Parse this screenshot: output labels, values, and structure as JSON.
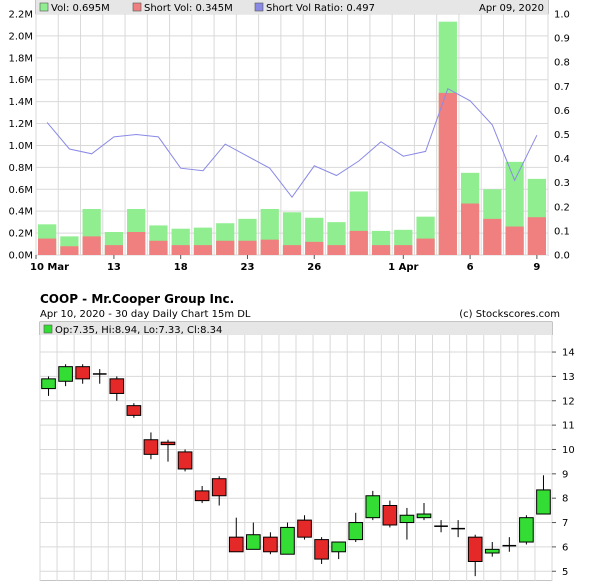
{
  "colors": {
    "vol": "#90ee90",
    "short_vol": "#f08080",
    "ratio": "#8a8ae6",
    "grid": "#d9d9d9",
    "legend_bg": "#e6e6e6",
    "candle_up": "#33dd33",
    "candle_down": "#e52828"
  },
  "chart_data": [
    {
      "type": "bar",
      "legend": {
        "vol": "Vol: 0.695M",
        "short_vol": "Short Vol: 0.345M",
        "ratio": "Short Vol Ratio: 0.497",
        "date": "Apr 09, 2020"
      },
      "x_tick_labels": [
        "10 Mar",
        "13",
        "18",
        "23",
        "26",
        "1 Apr",
        "6",
        "9"
      ],
      "x_tick_indices": [
        0,
        3,
        6,
        9,
        12,
        16,
        19,
        22
      ],
      "y_left_ticks": [
        "0.0M",
        "0.2M",
        "0.4M",
        "0.6M",
        "0.8M",
        "1.0M",
        "1.2M",
        "1.4M",
        "1.6M",
        "1.8M",
        "2.0M",
        "2.2M"
      ],
      "y_right_ticks": [
        "0.0",
        "0.1",
        "0.2",
        "0.3",
        "0.4",
        "0.5",
        "0.6",
        "0.7",
        "0.8",
        "0.9",
        "1.0"
      ],
      "ylim_left": [
        0,
        2.2
      ],
      "ylim_right": [
        0,
        1.0
      ],
      "vol": [
        0.28,
        0.17,
        0.42,
        0.21,
        0.42,
        0.27,
        0.24,
        0.25,
        0.29,
        0.33,
        0.42,
        0.39,
        0.34,
        0.3,
        0.58,
        0.22,
        0.23,
        0.35,
        2.13,
        0.75,
        0.6,
        0.85,
        0.695
      ],
      "short_vol": [
        0.15,
        0.08,
        0.17,
        0.09,
        0.21,
        0.13,
        0.09,
        0.09,
        0.13,
        0.13,
        0.14,
        0.09,
        0.12,
        0.09,
        0.22,
        0.09,
        0.09,
        0.15,
        1.48,
        0.47,
        0.33,
        0.26,
        0.345
      ],
      "ratio": [
        0.55,
        0.44,
        0.42,
        0.49,
        0.5,
        0.49,
        0.36,
        0.35,
        0.46,
        0.41,
        0.36,
        0.24,
        0.37,
        0.33,
        0.39,
        0.47,
        0.41,
        0.43,
        0.69,
        0.64,
        0.54,
        0.31,
        0.497
      ]
    },
    {
      "type": "candlestick",
      "title": "COOP - Mr.Cooper Group Inc.",
      "subtitle": "Apr 10, 2020 - 30 day  Daily Chart 15m DL",
      "source": "(c) Stockscores.com",
      "legend": "Op:7.35, Hi:8.94, Lo:7.33, Cl:8.34",
      "y_ticks": [
        "5",
        "6",
        "7",
        "8",
        "9",
        "10",
        "11",
        "12",
        "13",
        "14"
      ],
      "ylim": [
        4.6,
        14.7
      ],
      "candles": [
        {
          "o": 12.5,
          "h": 13.0,
          "l": 12.2,
          "c": 12.9
        },
        {
          "o": 12.8,
          "h": 13.5,
          "l": 12.6,
          "c": 13.4
        },
        {
          "o": 13.4,
          "h": 13.5,
          "l": 12.7,
          "c": 12.9
        },
        {
          "o": 13.1,
          "h": 13.3,
          "l": 12.7,
          "c": 13.1
        },
        {
          "o": 12.9,
          "h": 13.0,
          "l": 12.0,
          "c": 12.3
        },
        {
          "o": 11.8,
          "h": 11.9,
          "l": 11.3,
          "c": 11.4
        },
        {
          "o": 10.4,
          "h": 10.7,
          "l": 9.6,
          "c": 9.8
        },
        {
          "o": 10.3,
          "h": 10.4,
          "l": 9.5,
          "c": 10.2
        },
        {
          "o": 9.9,
          "h": 10.0,
          "l": 9.1,
          "c": 9.2
        },
        {
          "o": 8.3,
          "h": 8.5,
          "l": 7.8,
          "c": 7.9
        },
        {
          "o": 8.8,
          "h": 8.9,
          "l": 7.7,
          "c": 8.1
        },
        {
          "o": 6.4,
          "h": 7.2,
          "l": 5.8,
          "c": 5.8
        },
        {
          "o": 5.9,
          "h": 7.0,
          "l": 5.9,
          "c": 6.5
        },
        {
          "o": 6.4,
          "h": 6.6,
          "l": 5.7,
          "c": 5.8
        },
        {
          "o": 5.7,
          "h": 7.0,
          "l": 5.7,
          "c": 6.8
        },
        {
          "o": 7.1,
          "h": 7.3,
          "l": 6.3,
          "c": 6.4
        },
        {
          "o": 6.3,
          "h": 6.4,
          "l": 5.3,
          "c": 5.5
        },
        {
          "o": 5.8,
          "h": 6.2,
          "l": 5.5,
          "c": 6.2
        },
        {
          "o": 6.3,
          "h": 7.4,
          "l": 6.2,
          "c": 7.0
        },
        {
          "o": 7.2,
          "h": 8.3,
          "l": 7.1,
          "c": 8.1
        },
        {
          "o": 7.7,
          "h": 7.9,
          "l": 6.8,
          "c": 6.9
        },
        {
          "o": 7.0,
          "h": 7.6,
          "l": 6.3,
          "c": 7.3
        },
        {
          "o": 7.2,
          "h": 7.8,
          "l": 7.1,
          "c": 7.35
        },
        {
          "o": 6.9,
          "h": 7.1,
          "l": 6.6,
          "c": 6.85
        },
        {
          "o": 6.8,
          "h": 7.1,
          "l": 6.4,
          "c": 6.75
        },
        {
          "o": 6.4,
          "h": 6.5,
          "l": 4.8,
          "c": 5.4
        },
        {
          "o": 5.75,
          "h": 6.2,
          "l": 5.6,
          "c": 5.9
        },
        {
          "o": 6.0,
          "h": 6.4,
          "l": 5.8,
          "c": 6.05
        },
        {
          "o": 6.2,
          "h": 7.3,
          "l": 6.1,
          "c": 7.2
        },
        {
          "o": 7.35,
          "h": 8.94,
          "l": 7.33,
          "c": 8.34
        }
      ]
    }
  ]
}
